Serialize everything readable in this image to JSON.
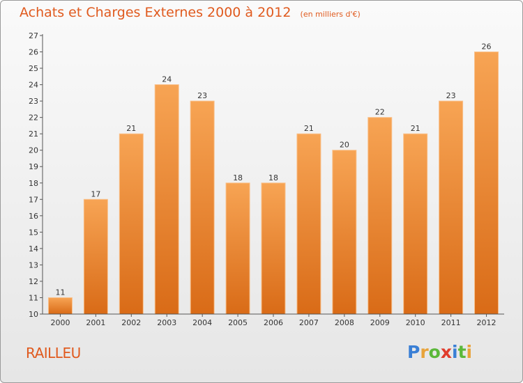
{
  "header": {
    "title": "Achats et Charges Externes 2000 à 2012",
    "unit": "(en milliers d'€)"
  },
  "footer": {
    "commune": "RAILLEU",
    "brand_letters": [
      "P",
      "r",
      "o",
      "x",
      "i",
      "t",
      "i"
    ],
    "brand_colors": [
      "#3a7fd5",
      "#e8a33a",
      "#5bb83a",
      "#e03c2c",
      "#3a7fd5",
      "#5bb83a",
      "#e8a33a"
    ]
  },
  "colors": {
    "bar_top": "#f7a454",
    "bar_bottom": "#d96b17",
    "bar_edge": "#f9c08a",
    "axis": "#555555",
    "text": "#333333"
  },
  "chart_data": {
    "type": "bar",
    "title": "Achats et Charges Externes 2000 à 2012",
    "subtitle": "(en milliers d'€)",
    "categories": [
      "2000",
      "2001",
      "2002",
      "2003",
      "2004",
      "2005",
      "2006",
      "2007",
      "2008",
      "2009",
      "2010",
      "2011",
      "2012"
    ],
    "values": [
      11,
      17,
      21,
      24,
      23,
      18,
      18,
      21,
      20,
      22,
      21,
      23,
      26
    ],
    "ylim": [
      10,
      27
    ],
    "yticks": [
      10,
      11,
      12,
      13,
      14,
      15,
      16,
      17,
      18,
      19,
      20,
      21,
      22,
      23,
      24,
      25,
      26,
      27
    ],
    "grid": false,
    "data_labels": true
  }
}
